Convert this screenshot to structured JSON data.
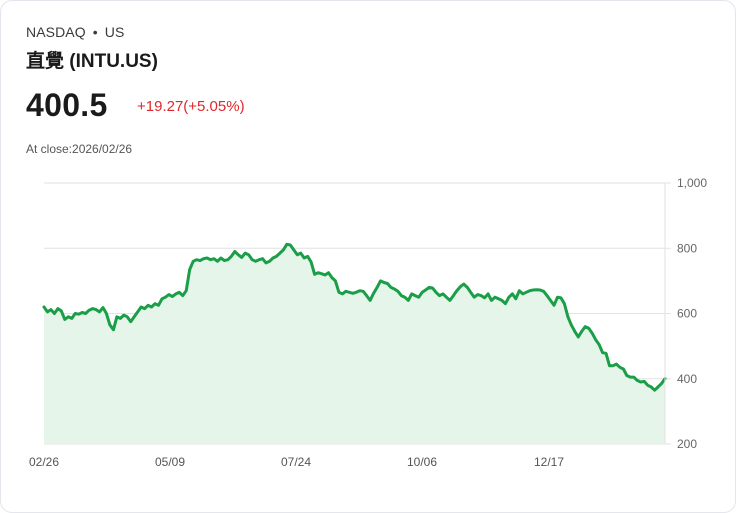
{
  "header": {
    "exchange": "NASDAQ",
    "separator": "•",
    "region": "US",
    "title": "直覺 (INTU.US)",
    "price": "400.5",
    "change": "+19.27(+5.05%)",
    "close_label": "At close:2026/02/26"
  },
  "colors": {
    "line": "#1a9e48",
    "fill": "#e6f5ea",
    "change": "#e0262b",
    "grid": "#e2e2e2"
  },
  "chart_data": {
    "type": "area",
    "title": "直覺 (INTU.US)",
    "xlabel": "",
    "ylabel": "",
    "ylim": [
      200,
      1000
    ],
    "yticks": [
      "1,000",
      "800",
      "600",
      "400",
      "200"
    ],
    "xticks": [
      "02/26",
      "05/09",
      "07/24",
      "10/06",
      "12/17"
    ],
    "grid": true,
    "y_axis_position": "right",
    "series": [
      {
        "name": "INTU.US",
        "values": [
          620,
          605,
          612,
          600,
          615,
          608,
          582,
          590,
          585,
          600,
          598,
          603,
          600,
          610,
          615,
          612,
          605,
          618,
          600,
          565,
          550,
          590,
          585,
          595,
          590,
          575,
          590,
          605,
          620,
          615,
          625,
          620,
          630,
          625,
          645,
          650,
          658,
          652,
          660,
          665,
          655,
          670,
          735,
          760,
          765,
          762,
          768,
          770,
          765,
          768,
          760,
          770,
          762,
          765,
          775,
          790,
          780,
          772,
          785,
          780,
          765,
          760,
          765,
          768,
          755,
          760,
          770,
          775,
          785,
          795,
          812,
          810,
          795,
          780,
          785,
          770,
          775,
          758,
          720,
          725,
          722,
          718,
          725,
          710,
          700,
          665,
          660,
          668,
          665,
          662,
          665,
          670,
          668,
          655,
          640,
          662,
          680,
          700,
          695,
          692,
          680,
          675,
          668,
          655,
          650,
          640,
          660,
          655,
          650,
          665,
          672,
          680,
          678,
          665,
          655,
          660,
          650,
          640,
          655,
          670,
          682,
          690,
          680,
          665,
          650,
          658,
          655,
          648,
          660,
          640,
          650,
          645,
          640,
          630,
          650,
          660,
          645,
          670,
          660,
          665,
          670,
          672,
          673,
          672,
          668,
          655,
          640,
          625,
          650,
          648,
          630,
          590,
          565,
          545,
          528,
          545,
          560,
          555,
          540,
          520,
          505,
          480,
          478,
          440,
          440,
          445,
          435,
          430,
          410,
          405,
          405,
          395,
          390,
          392,
          380,
          375,
          365,
          375,
          385,
          400.5
        ]
      }
    ]
  }
}
